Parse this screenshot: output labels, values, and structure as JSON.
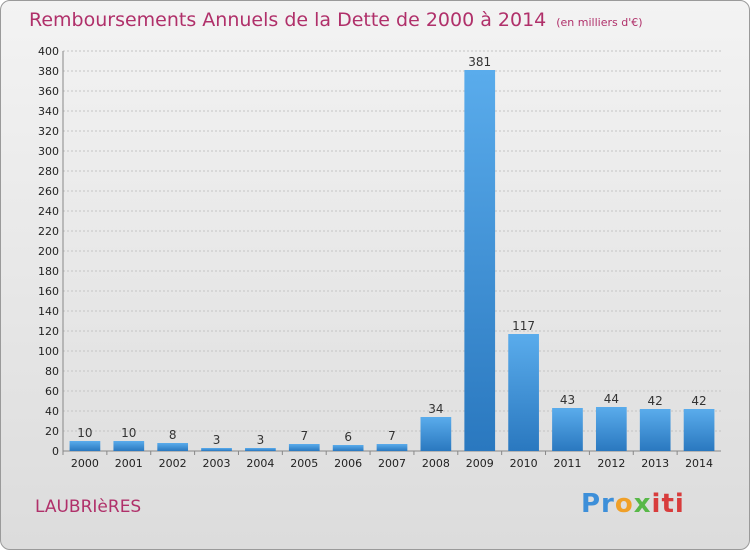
{
  "title": "Remboursements Annuels de la Dette de 2000 à 2014",
  "subtitle": "(en milliers d'€)",
  "town": "LAUBRIèRES",
  "logo": {
    "p1": "Pr",
    "p2": "o",
    "p3": "x",
    "p4": "iti"
  },
  "colors": {
    "bar_top": "#5aacec",
    "bar_bottom": "#2a78bf",
    "accent": "#b0306a"
  },
  "chart_data": {
    "type": "bar",
    "title": "Remboursements Annuels de la Dette de 2000 à 2014",
    "subtitle": "(en milliers d'€)",
    "categories": [
      "2000",
      "2001",
      "2002",
      "2003",
      "2004",
      "2005",
      "2006",
      "2007",
      "2008",
      "2009",
      "2010",
      "2011",
      "2012",
      "2013",
      "2014"
    ],
    "values": [
      10,
      10,
      8,
      3,
      3,
      7,
      6,
      7,
      34,
      381,
      117,
      43,
      44,
      42,
      42
    ],
    "ylim": [
      0,
      400
    ],
    "yticks": [
      0,
      20,
      40,
      60,
      80,
      100,
      120,
      140,
      160,
      180,
      200,
      220,
      240,
      260,
      280,
      300,
      320,
      340,
      360,
      380,
      400
    ],
    "grid": true,
    "legend": "none"
  }
}
